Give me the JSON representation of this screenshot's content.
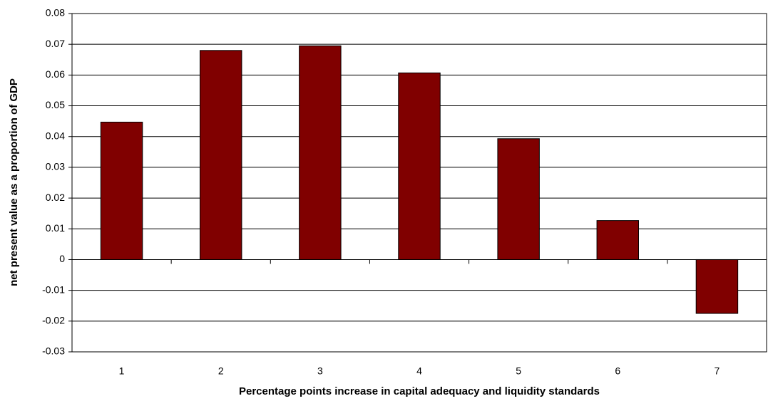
{
  "chart_data": {
    "type": "bar",
    "x_label": "Percentage points increase in capital adequacy and liquidity standards",
    "y_label": "net present value as a proportion of GDP",
    "categories": [
      "1",
      "2",
      "3",
      "4",
      "5",
      "6",
      "7"
    ],
    "values": [
      0.0447,
      0.068,
      0.0695,
      0.0607,
      0.0393,
      0.0127,
      -0.0175
    ],
    "color": "#800000",
    "ylim": [
      -0.03,
      0.08
    ],
    "yticks": [
      0.08,
      0.07,
      0.06,
      0.05,
      0.04,
      0.03,
      0.02,
      0.01,
      0,
      -0.01,
      -0.02,
      -0.03
    ],
    "grid": true
  }
}
